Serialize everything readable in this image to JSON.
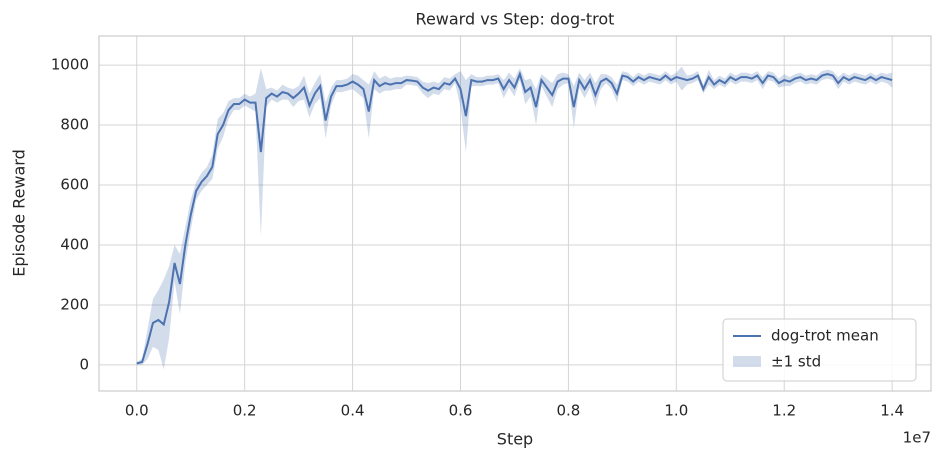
{
  "chart_data": {
    "type": "line",
    "title": "Reward vs Step: dog-trot",
    "x_label": "Step",
    "y_label": "Episode Reward",
    "x_offset_label": "1e7",
    "x": [
      0,
      100000,
      200000,
      300000,
      400000,
      500000,
      600000,
      700000,
      800000,
      900000,
      1000000,
      1100000,
      1200000,
      1300000,
      1400000,
      1500000,
      1600000,
      1700000,
      1800000,
      1900000,
      2000000,
      2100000,
      2200000,
      2300000,
      2400000,
      2500000,
      2600000,
      2700000,
      2800000,
      2900000,
      3000000,
      3100000,
      3200000,
      3300000,
      3400000,
      3500000,
      3600000,
      3700000,
      3800000,
      3900000,
      4000000,
      4100000,
      4200000,
      4300000,
      4400000,
      4500000,
      4600000,
      4700000,
      4800000,
      4900000,
      5000000,
      5100000,
      5200000,
      5300000,
      5400000,
      5500000,
      5600000,
      5700000,
      5800000,
      5900000,
      6000000,
      6100000,
      6200000,
      6300000,
      6400000,
      6500000,
      6600000,
      6700000,
      6800000,
      6900000,
      7000000,
      7100000,
      7200000,
      7300000,
      7400000,
      7500000,
      7600000,
      7700000,
      7800000,
      7900000,
      8000000,
      8100000,
      8200000,
      8300000,
      8400000,
      8500000,
      8600000,
      8700000,
      8800000,
      8900000,
      9000000,
      9100000,
      9200000,
      9300000,
      9400000,
      9500000,
      9600000,
      9700000,
      9800000,
      9900000,
      10000000,
      10100000,
      10200000,
      10300000,
      10400000,
      10500000,
      10600000,
      10700000,
      10800000,
      10900000,
      11000000,
      11100000,
      11200000,
      11300000,
      11400000,
      11500000,
      11600000,
      11700000,
      11800000,
      11900000,
      12000000,
      12100000,
      12200000,
      12300000,
      12400000,
      12500000,
      12600000,
      12700000,
      12800000,
      12900000,
      13000000,
      13100000,
      13200000,
      13300000,
      13400000,
      13500000,
      13600000,
      13700000,
      13800000,
      13900000,
      14000000
    ],
    "series": [
      {
        "name": "dog-trot mean",
        "color": "#4c72b0",
        "values": [
          5,
          10,
          70,
          140,
          150,
          135,
          210,
          340,
          270,
          400,
          500,
          580,
          610,
          630,
          660,
          770,
          800,
          850,
          870,
          870,
          885,
          875,
          875,
          710,
          890,
          905,
          895,
          910,
          905,
          890,
          905,
          925,
          865,
          905,
          930,
          815,
          895,
          930,
          930,
          935,
          945,
          935,
          920,
          845,
          950,
          930,
          940,
          935,
          940,
          940,
          950,
          948,
          945,
          925,
          915,
          925,
          920,
          940,
          935,
          955,
          920,
          830,
          950,
          945,
          945,
          950,
          950,
          955,
          920,
          950,
          925,
          970,
          910,
          925,
          860,
          950,
          925,
          900,
          945,
          955,
          955,
          860,
          950,
          920,
          950,
          900,
          945,
          955,
          940,
          905,
          965,
          960,
          945,
          960,
          950,
          960,
          955,
          950,
          965,
          950,
          960,
          955,
          950,
          955,
          965,
          920,
          960,
          935,
          950,
          940,
          960,
          950,
          960,
          960,
          955,
          965,
          940,
          965,
          960,
          940,
          950,
          945,
          955,
          960,
          950,
          955,
          950,
          965,
          970,
          965,
          940,
          960,
          950,
          960,
          955,
          950,
          960,
          950,
          960,
          955,
          950
        ]
      },
      {
        "name": "±1 std",
        "color": "#4c72b0",
        "values": [
          5,
          10,
          50,
          80,
          100,
          150,
          120,
          60,
          100,
          60,
          50,
          30,
          30,
          30,
          40,
          50,
          40,
          30,
          20,
          20,
          20,
          20,
          30,
          280,
          30,
          20,
          20,
          25,
          20,
          30,
          25,
          40,
          40,
          35,
          40,
          60,
          30,
          20,
          20,
          20,
          25,
          30,
          30,
          90,
          30,
          25,
          25,
          20,
          20,
          20,
          15,
          15,
          15,
          20,
          25,
          20,
          20,
          20,
          20,
          15,
          60,
          120,
          20,
          15,
          15,
          15,
          15,
          15,
          30,
          25,
          30,
          20,
          40,
          30,
          60,
          20,
          30,
          40,
          25,
          20,
          15,
          70,
          25,
          30,
          25,
          40,
          25,
          15,
          20,
          30,
          15,
          15,
          15,
          15,
          15,
          15,
          15,
          15,
          15,
          15,
          15,
          40,
          15,
          15,
          15,
          15,
          25,
          15,
          15,
          15,
          15,
          15,
          15,
          15,
          15,
          15,
          20,
          15,
          15,
          15,
          20,
          15,
          15,
          15,
          15,
          15,
          15,
          15,
          15,
          15,
          20,
          15,
          15,
          15,
          15,
          15,
          15,
          15,
          15,
          15,
          25
        ]
      }
    ],
    "xlim": [
      -700000,
      14720000
    ],
    "ylim": [
      -87,
      1097
    ],
    "xticks": [
      {
        "value": 0,
        "label": "0.0"
      },
      {
        "value": 2000000,
        "label": "0.2"
      },
      {
        "value": 4000000,
        "label": "0.4"
      },
      {
        "value": 6000000,
        "label": "0.6"
      },
      {
        "value": 8000000,
        "label": "0.8"
      },
      {
        "value": 10000000,
        "label": "1.0"
      },
      {
        "value": 12000000,
        "label": "1.2"
      },
      {
        "value": 14000000,
        "label": "1.4"
      }
    ],
    "yticks": [
      0,
      200,
      400,
      600,
      800,
      1000
    ],
    "grid": true,
    "legend": "lower right"
  }
}
